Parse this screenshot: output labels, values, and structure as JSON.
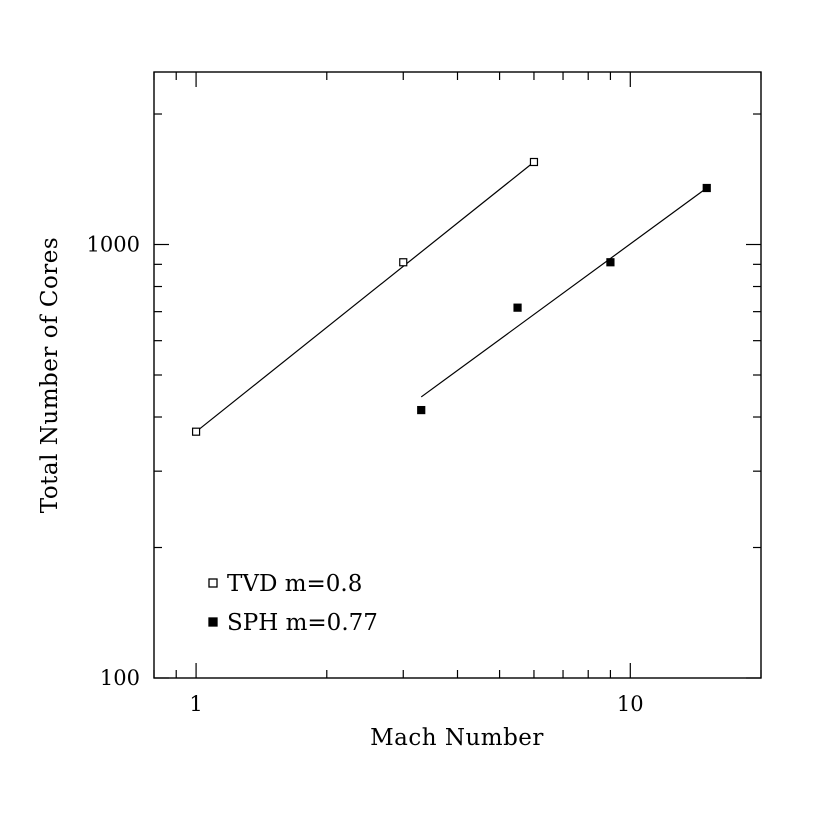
{
  "chart_data": {
    "type": "scatter",
    "xlabel": "Mach Number",
    "ylabel": "Total Number of Cores",
    "xscale": "log",
    "yscale": "log",
    "xlim": [
      0.8,
      20
    ],
    "ylim": [
      100,
      2500
    ],
    "xticks_major": [
      1,
      10
    ],
    "xtick_labels": [
      "1",
      "10"
    ],
    "yticks_major": [
      100,
      1000
    ],
    "ytick_labels": [
      "100",
      "1000"
    ],
    "legend_position": "lower-left",
    "grid": false,
    "series": [
      {
        "name": "TVD m=0.8",
        "marker": "open-square",
        "x": [
          1,
          3,
          6
        ],
        "y": [
          370,
          910,
          1550
        ],
        "fit": {
          "x": [
            1,
            6
          ],
          "y": [
            370,
            1550
          ]
        }
      },
      {
        "name": "SPH m=0.77",
        "marker": "filled-square",
        "x": [
          3.3,
          5.5,
          9,
          15
        ],
        "y": [
          415,
          715,
          910,
          1350
        ],
        "fit": {
          "x": [
            3.3,
            15
          ],
          "y": [
            445,
            1350
          ]
        }
      }
    ]
  }
}
